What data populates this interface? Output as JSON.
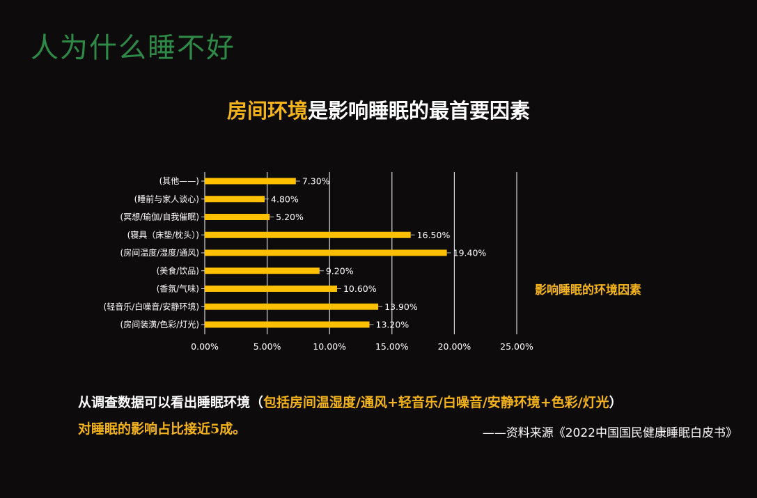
{
  "page": {
    "title": "人为什么睡不好",
    "headline_highlight": "房间环境",
    "headline_rest": "是影响睡眠的最首要因素"
  },
  "chart_data": {
    "type": "bar",
    "orientation": "horizontal",
    "series_label": "影响睡眠的环境因素",
    "categories": [
      "(其他——)",
      "(睡前与家人谈心)",
      "(冥想/瑜伽/自我催眠)",
      "(寝具（床垫/枕头）)",
      "(房间温度/湿度/通风)",
      "(美食/饮品)",
      "(香氛/气味)",
      "(轻音乐/白噪音/安静环境)",
      "(房间装潢/色彩/灯光)"
    ],
    "values": [
      7.3,
      4.8,
      5.2,
      16.5,
      19.4,
      9.2,
      10.6,
      13.9,
      13.2
    ],
    "value_labels": [
      "7.30%",
      "4.80%",
      "5.20%",
      "16.50%",
      "19.40%",
      "9.20%",
      "10.60%",
      "13.90%",
      "13.20%"
    ],
    "xlim": [
      0,
      25
    ],
    "x_ticks": [
      0,
      5,
      10,
      15,
      20,
      25
    ],
    "x_tick_labels": [
      "0.00%",
      "5.00%",
      "10.00%",
      "15.00%",
      "20.00%",
      "25.00%"
    ],
    "grid": "vertical",
    "bar_color": "#ffc000"
  },
  "conclusion": {
    "prefix": "从调查数据可以看出睡眠环境（",
    "highlight": "包括房间温湿度/通风+轻音乐/白噪音/安静环境+色彩/灯光",
    "suffix": "）",
    "line2": "对睡眠的影响占比接近5成。"
  },
  "source": "——资料来源《2022中国国民健康睡眠白皮书》"
}
